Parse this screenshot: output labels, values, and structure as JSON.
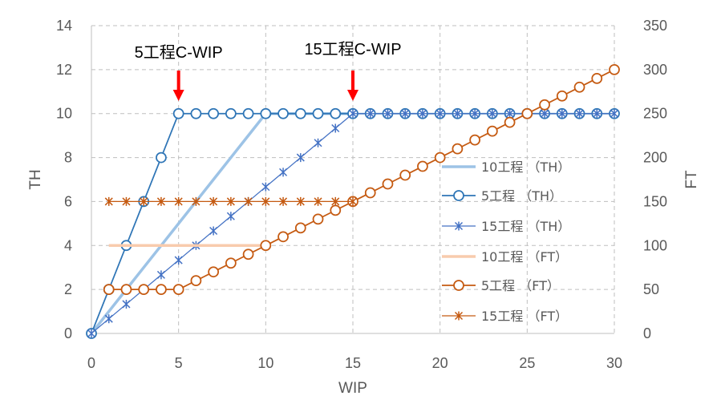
{
  "chart_data": {
    "type": "line",
    "title": "",
    "xlabel": "WIP",
    "ylabel": "TH",
    "y2label": "FT",
    "xlim": [
      0,
      30
    ],
    "ylim": [
      0,
      14
    ],
    "y2lim": [
      0,
      350
    ],
    "xticks": [
      0,
      5,
      10,
      15,
      20,
      25,
      30
    ],
    "yticks": [
      0,
      2,
      4,
      6,
      8,
      10,
      12,
      14
    ],
    "y2ticks": [
      0,
      50,
      100,
      150,
      200,
      250,
      300,
      350
    ],
    "grid": true,
    "legend_position": "right",
    "annotations": [
      {
        "text": "5工程C-WIP",
        "x": 5
      },
      {
        "text": "15工程C-WIP",
        "x": 15
      }
    ],
    "colors": {
      "th10": "#9dc3e6",
      "th5": "#2e75b6",
      "th15": "#4472c4",
      "ft10": "#f8cbad",
      "ft5": "#c55a11",
      "ft15": "#c55a11",
      "arrow": "#ff0000",
      "grid": "#bfbfbf"
    },
    "series": [
      {
        "name": "10工程 （TH）",
        "axis": "left",
        "marker": "none",
        "x": [
          0,
          1,
          2,
          3,
          4,
          5,
          6,
          7,
          8,
          9,
          10,
          11,
          12,
          13,
          14,
          15
        ],
        "y": [
          0,
          1,
          2,
          3,
          4,
          5,
          6,
          7,
          8,
          9,
          10,
          10,
          10,
          10,
          10,
          10
        ]
      },
      {
        "name": "5工程 （TH）",
        "axis": "left",
        "marker": "circle",
        "x": [
          0,
          1,
          2,
          3,
          4,
          5,
          6,
          7,
          8,
          9,
          10,
          11,
          12,
          13,
          14,
          15,
          16,
          17,
          18,
          19,
          20,
          21,
          22,
          23,
          24,
          25,
          26,
          27,
          28,
          29,
          30
        ],
        "y": [
          0,
          2,
          4,
          6,
          8,
          10,
          10,
          10,
          10,
          10,
          10,
          10,
          10,
          10,
          10,
          10,
          10,
          10,
          10,
          10,
          10,
          10,
          10,
          10,
          10,
          10,
          10,
          10,
          10,
          10,
          10
        ]
      },
      {
        "name": "15工程 （TH）",
        "axis": "left",
        "marker": "star",
        "x": [
          0,
          1,
          2,
          3,
          4,
          5,
          6,
          7,
          8,
          9,
          10,
          11,
          12,
          13,
          14,
          15,
          16,
          17,
          18,
          19,
          20,
          21,
          22,
          23,
          24,
          25,
          26,
          27,
          28,
          29,
          30
        ],
        "y": [
          0,
          0.667,
          1.333,
          2,
          2.667,
          3.333,
          4,
          4.667,
          5.333,
          6,
          6.667,
          7.333,
          8,
          8.667,
          9.333,
          10,
          10,
          10,
          10,
          10,
          10,
          10,
          10,
          10,
          10,
          10,
          10,
          10,
          10,
          10,
          10
        ]
      },
      {
        "name": "10工程 （FT）",
        "axis": "right",
        "marker": "none",
        "x": [
          1,
          2,
          3,
          4,
          5,
          6,
          7,
          8,
          9,
          10
        ],
        "y": [
          100,
          100,
          100,
          100,
          100,
          100,
          100,
          100,
          100,
          100
        ]
      },
      {
        "name": "5工程 （FT）",
        "axis": "right",
        "marker": "circle",
        "x": [
          1,
          2,
          3,
          4,
          5,
          6,
          7,
          8,
          9,
          10,
          11,
          12,
          13,
          14,
          15,
          16,
          17,
          18,
          19,
          20,
          21,
          22,
          23,
          24,
          25,
          26,
          27,
          28,
          29,
          30
        ],
        "y": [
          50,
          50,
          50,
          50,
          50,
          60,
          70,
          80,
          90,
          100,
          110,
          120,
          130,
          140,
          150,
          160,
          170,
          180,
          190,
          200,
          210,
          220,
          230,
          240,
          250,
          260,
          270,
          280,
          290,
          300
        ]
      },
      {
        "name": "15工程 （FT）",
        "axis": "right",
        "marker": "star",
        "x": [
          1,
          2,
          3,
          4,
          5,
          6,
          7,
          8,
          9,
          10,
          11,
          12,
          13,
          14,
          15
        ],
        "y": [
          150,
          150,
          150,
          150,
          150,
          150,
          150,
          150,
          150,
          150,
          150,
          150,
          150,
          150,
          150
        ]
      }
    ]
  }
}
